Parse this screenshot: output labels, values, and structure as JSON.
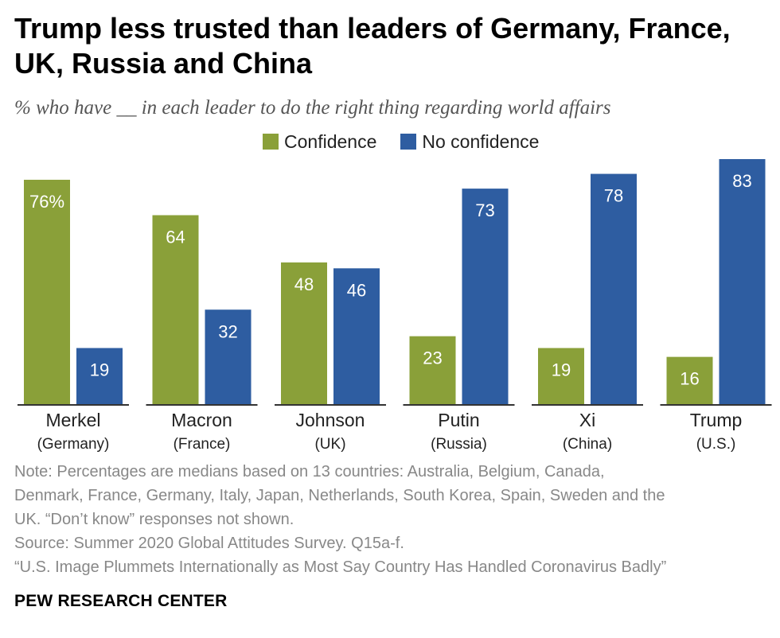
{
  "title": "Trump less trusted than leaders of Germany, France, UK, Russia and China",
  "subtitle": "% who have __ in each leader to do the right thing regarding world affairs",
  "colors": {
    "confidence": "#8aa039",
    "no_confidence": "#2e5da1",
    "bar_label": "#ffffff",
    "axis": "#333333"
  },
  "chart_data": {
    "type": "bar",
    "title": "Trump less trusted than leaders of Germany, France, UK, Russia and China",
    "subtitle": "% who have __ in each leader to do the right thing regarding world affairs",
    "categories": [
      "Merkel",
      "Macron",
      "Johnson",
      "Putin",
      "Xi",
      "Trump"
    ],
    "category_sublabels": [
      "(Germany)",
      "(France)",
      "(UK)",
      "(Russia)",
      "(China)",
      "(U.S.)"
    ],
    "series": [
      {
        "name": "Confidence",
        "values": [
          76,
          64,
          48,
          23,
          19,
          16
        ],
        "labels": [
          "76%",
          "64",
          "48",
          "23",
          "19",
          "16"
        ]
      },
      {
        "name": "No confidence",
        "values": [
          19,
          32,
          46,
          73,
          78,
          83
        ],
        "labels": [
          "19",
          "32",
          "46",
          "73",
          "78",
          "83"
        ]
      }
    ],
    "ylim": [
      0,
      83
    ],
    "grid": false,
    "legend": "top-center"
  },
  "note_lines": [
    "Note: Percentages are medians based on 13 countries: Australia, Belgium, Canada,",
    "Denmark, France, Germany, Italy, Japan, Netherlands, South Korea, Spain, Sweden and the",
    "UK. “Don’t know” responses not shown.",
    "Source: Summer 2020 Global Attitudes Survey. Q15a-f.",
    "“U.S. Image Plummets Internationally as Most Say Country Has Handled Coronavirus Badly”"
  ],
  "brand": "PEW RESEARCH CENTER"
}
